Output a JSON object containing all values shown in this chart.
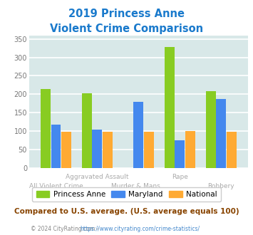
{
  "title_line1": "2019 Princess Anne",
  "title_line2": "Violent Crime Comparison",
  "title_color": "#1a7acc",
  "princess_anne": [
    215,
    203,
    0,
    328,
    208
  ],
  "maryland": [
    118,
    105,
    180,
    75,
    187
  ],
  "national": [
    99,
    99,
    99,
    100,
    99
  ],
  "bar_colors": {
    "princess_anne": "#88cc22",
    "maryland": "#4488ee",
    "national": "#ffaa33"
  },
  "ylim": [
    0,
    360
  ],
  "yticks": [
    0,
    50,
    100,
    150,
    200,
    250,
    300,
    350
  ],
  "plot_bg": "#d8e8e8",
  "grid_color": "#ffffff",
  "xlabel_top": [
    "",
    "Aggravated Assault",
    "",
    "Rape",
    ""
  ],
  "xlabel_bot": [
    "All Violent Crime",
    "",
    "Murder & Mans...",
    "",
    "Robbery"
  ],
  "xlabel_color": "#aaaaaa",
  "legend_labels": [
    "Princess Anne",
    "Maryland",
    "National"
  ],
  "footer_note": "Compared to U.S. average. (U.S. average equals 100)",
  "footer_note_color": "#884400",
  "copyright_left": "© 2024 CityRating.com - ",
  "copyright_right": "https://www.cityrating.com/crime-statistics/",
  "copyright_color": "#888888",
  "copyright_link_color": "#4488cc"
}
